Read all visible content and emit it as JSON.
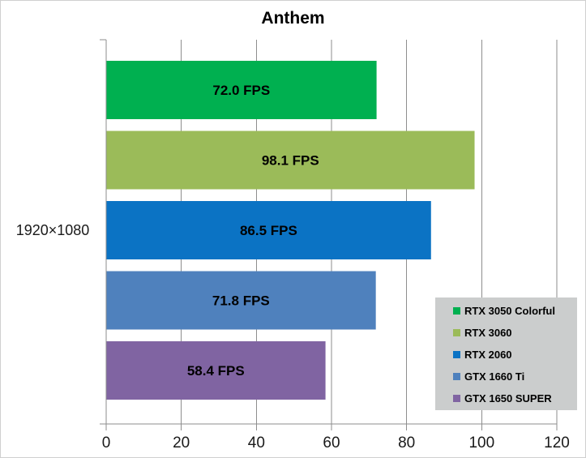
{
  "chart_data": {
    "type": "bar",
    "orientation": "horizontal",
    "title": "Anthem",
    "category_label": "1920×1080",
    "value_unit": "FPS",
    "series": [
      {
        "name": "RTX 3050 Colorful",
        "value": 72.0,
        "label": "72.0 FPS",
        "color": "#00B050"
      },
      {
        "name": "RTX 3060",
        "value": 98.1,
        "label": "98.1 FPS",
        "color": "#9BBB59"
      },
      {
        "name": "RTX 2060",
        "value": 86.5,
        "label": "86.5 FPS",
        "color": "#0B73C4"
      },
      {
        "name": "GTX 1660 Ti",
        "value": 71.8,
        "label": "71.8 FPS",
        "color": "#4F81BD"
      },
      {
        "name": "GTX 1650 SUPER",
        "value": 58.4,
        "label": "58.4 FPS",
        "color": "#8064A2"
      }
    ],
    "x_axis": {
      "min": 0,
      "max": 120,
      "step": 20,
      "tick_labels": [
        "0",
        "20",
        "40",
        "60",
        "80",
        "100",
        "120"
      ]
    },
    "grid": true,
    "legend": {
      "position": "bottom-right",
      "background": "#CBCDCD",
      "entries": [
        "RTX 3050 Colorful",
        "RTX 3060",
        "RTX 2060",
        "GTX 1660 Ti",
        "GTX 1650 SUPER"
      ]
    },
    "colors": {
      "gridline": "#8E8E8E",
      "axis_line": "#8E8E8E",
      "title_text": "#000000",
      "tick_text": "#1a1a1a",
      "chart_border": "#D0D0D0",
      "plot_background": "#FFFFFF"
    }
  }
}
